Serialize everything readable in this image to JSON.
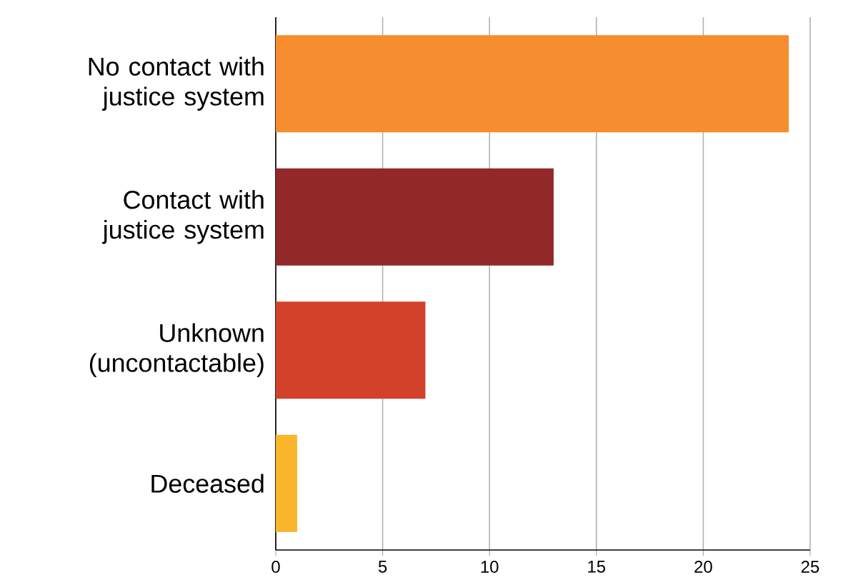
{
  "chart_data": {
    "type": "bar",
    "orientation": "horizontal",
    "categories": [
      "No contact with justice system",
      "Contact with justice system",
      "Unknown (uncontactable)",
      "Deceased"
    ],
    "values": [
      24,
      13,
      7,
      1
    ],
    "colors": [
      "#f68d2e",
      "#922828",
      "#d3412a",
      "#fbb52b"
    ],
    "xlim": [
      0,
      25
    ],
    "xticks": [
      0,
      5,
      10,
      15,
      20,
      25
    ],
    "grid": "x"
  }
}
